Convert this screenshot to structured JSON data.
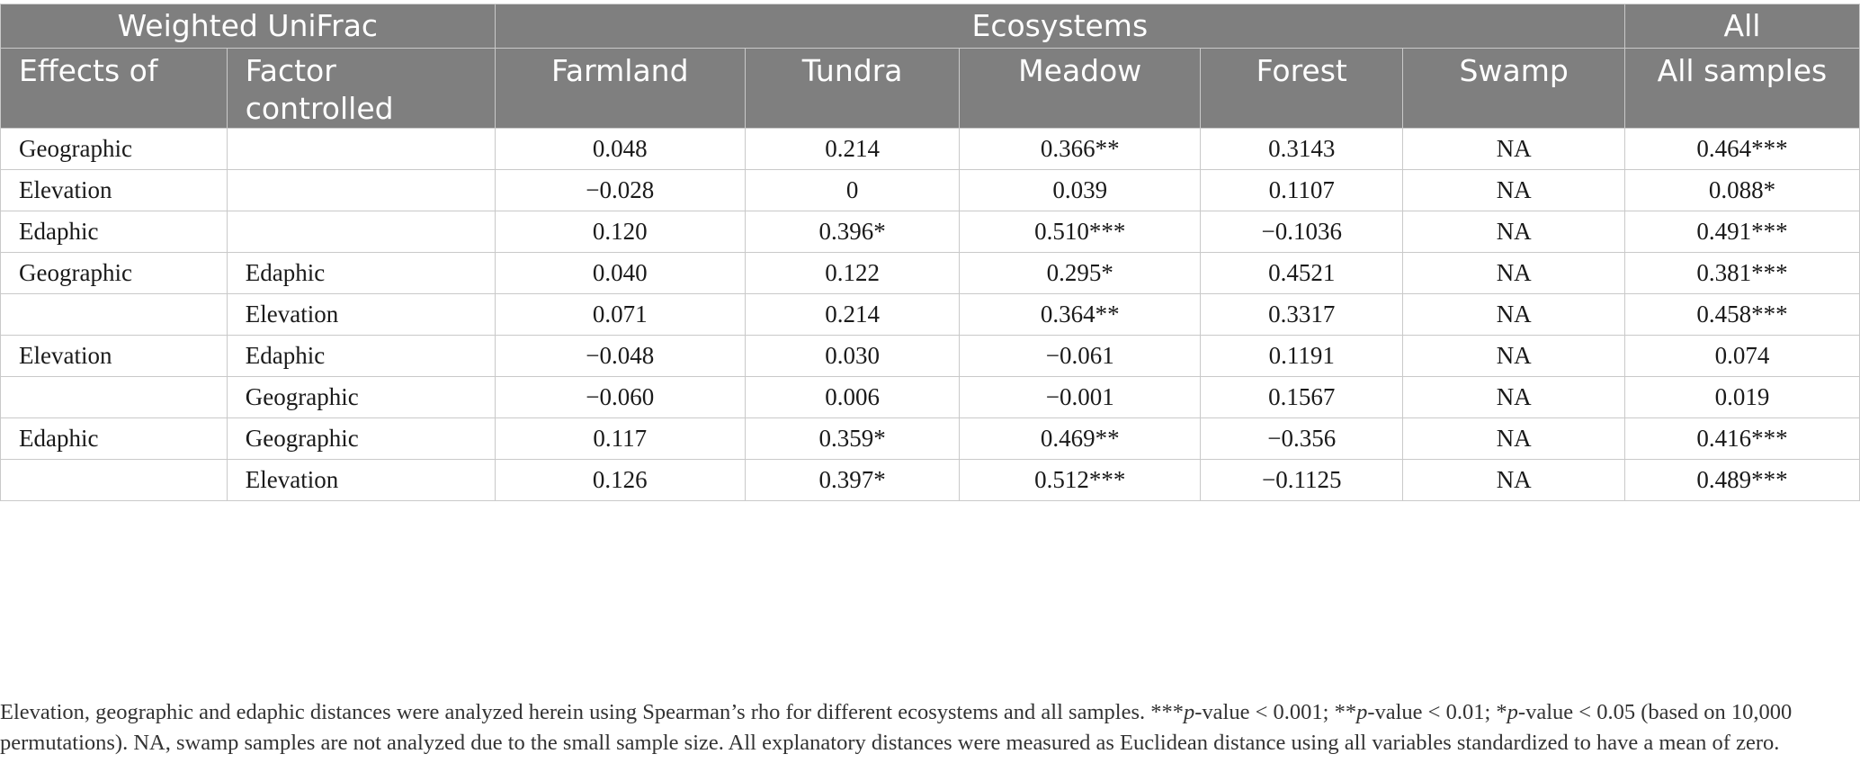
{
  "header": {
    "group_row": {
      "measure": "Weighted UniFrac",
      "ecosystems": "Ecosystems",
      "all": "All"
    },
    "columns": [
      "Effects of",
      "Factor controlled",
      "Farmland",
      "Tundra",
      "Meadow",
      "Forest",
      "Swamp",
      "All samples"
    ]
  },
  "rows": [
    [
      "Geographic",
      "",
      "0.048",
      "0.214",
      "0.366**",
      "0.3143",
      "NA",
      "0.464***"
    ],
    [
      "Elevation",
      "",
      "−0.028",
      "0",
      "0.039",
      "0.1107",
      "NA",
      "0.088*"
    ],
    [
      "Edaphic",
      "",
      "0.120",
      "0.396*",
      "0.510***",
      "−0.1036",
      "NA",
      "0.491***"
    ],
    [
      "Geographic",
      "Edaphic",
      "0.040",
      "0.122",
      "0.295*",
      "0.4521",
      "NA",
      "0.381***"
    ],
    [
      "",
      "Elevation",
      "0.071",
      "0.214",
      "0.364**",
      "0.3317",
      "NA",
      "0.458***"
    ],
    [
      "Elevation",
      "Edaphic",
      "−0.048",
      "0.030",
      "−0.061",
      "0.1191",
      "NA",
      "0.074"
    ],
    [
      "",
      "Geographic",
      "−0.060",
      "0.006",
      "−0.001",
      "0.1567",
      "NA",
      "0.019"
    ],
    [
      "Edaphic",
      "Geographic",
      "0.117",
      "0.359*",
      "0.469**",
      "−0.356",
      "NA",
      "0.416***"
    ],
    [
      "",
      "Elevation",
      "0.126",
      "0.397*",
      "0.512***",
      "−0.1125",
      "NA",
      "0.489***"
    ]
  ],
  "footnote": {
    "part1": "Elevation, geographic and edaphic distances were analyzed herein using Spearman’s rho for different ecosystems and all samples. ***",
    "p1": "p",
    "part2": "-value < 0.001; **",
    "p2": "p",
    "part3": "-value < 0.01; *",
    "p3": "p",
    "part4": "-value < 0.05 (based on 10,000 permutations). NA, swamp samples are not analyzed due to the small sample size. All explanatory distances were measured as Euclidean distance using all variables standardized to have a mean of zero."
  }
}
